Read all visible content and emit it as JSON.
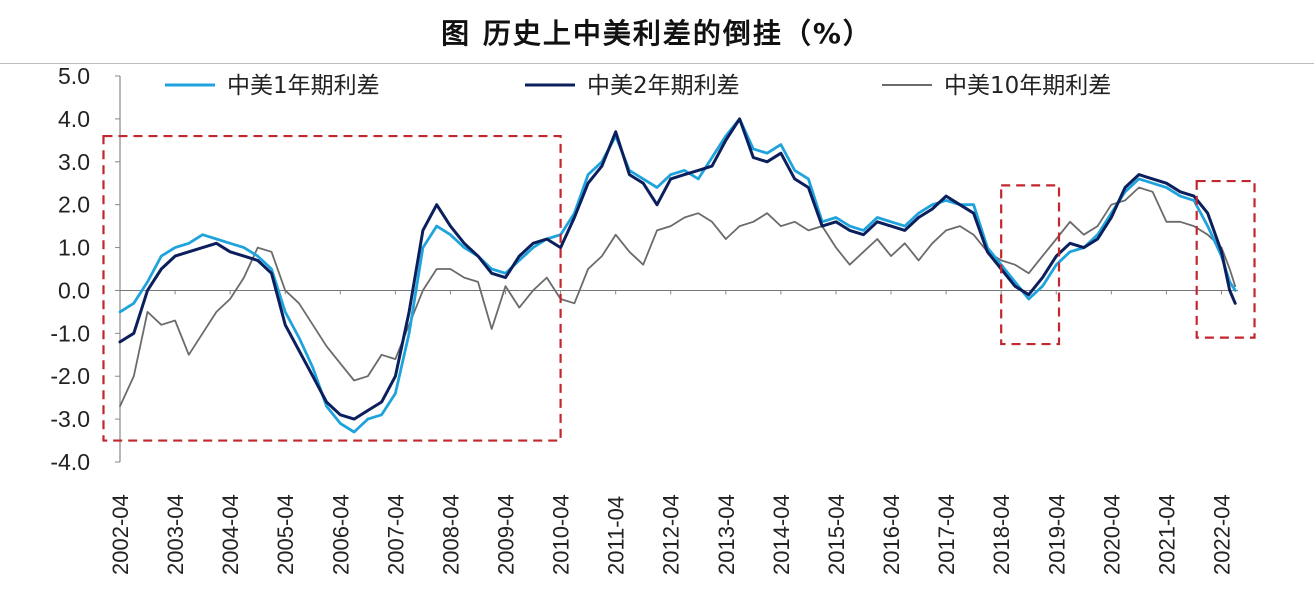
{
  "chart_data": {
    "type": "line",
    "title": "图 历史上中美利差的倒挂（%）",
    "xlabel": "",
    "ylabel": "",
    "ylim": [
      -4.0,
      5.0
    ],
    "y_ticks": [
      "5.0",
      "4.0",
      "3.0",
      "2.0",
      "1.0",
      "0.0",
      "-1.0",
      "-2.0",
      "-3.0",
      "-4.0"
    ],
    "y_tick_values": [
      5,
      4,
      3,
      2,
      1,
      0,
      -1,
      -2,
      -3,
      -4
    ],
    "x_range": [
      2002.25,
      2022.55
    ],
    "categories": [
      "2002-04",
      "2003-04",
      "2004-04",
      "2005-04",
      "2006-04",
      "2007-04",
      "2008-04",
      "2009-04",
      "2010-04",
      "2011-04",
      "2012-04",
      "2013-04",
      "2014-04",
      "2015-04",
      "2016-04",
      "2017-04",
      "2018-04",
      "2019-04",
      "2020-04",
      "2021-04",
      "2022-04"
    ],
    "category_positions": [
      2002.25,
      2003.25,
      2004.25,
      2005.25,
      2006.25,
      2007.25,
      2008.25,
      2009.25,
      2010.25,
      2011.25,
      2012.25,
      2013.25,
      2014.25,
      2015.25,
      2016.25,
      2017.25,
      2018.25,
      2019.25,
      2020.25,
      2021.25,
      2022.25
    ],
    "series": [
      {
        "name": "中美1年期利差",
        "color": "#1fa3dc",
        "x": [
          2002.25,
          2002.5,
          2002.75,
          2003.0,
          2003.25,
          2003.5,
          2003.75,
          2004.0,
          2004.25,
          2004.5,
          2004.75,
          2005.0,
          2005.25,
          2005.5,
          2005.75,
          2006.0,
          2006.25,
          2006.5,
          2006.75,
          2007.0,
          2007.25,
          2007.5,
          2007.75,
          2008.0,
          2008.25,
          2008.5,
          2008.75,
          2009.0,
          2009.25,
          2009.5,
          2009.75,
          2010.0,
          2010.25,
          2010.5,
          2010.75,
          2011.0,
          2011.25,
          2011.5,
          2011.75,
          2012.0,
          2012.25,
          2012.5,
          2012.75,
          2013.0,
          2013.25,
          2013.5,
          2013.75,
          2014.0,
          2014.25,
          2014.5,
          2014.75,
          2015.0,
          2015.25,
          2015.5,
          2015.75,
          2016.0,
          2016.25,
          2016.5,
          2016.75,
          2017.0,
          2017.25,
          2017.5,
          2017.75,
          2018.0,
          2018.25,
          2018.5,
          2018.75,
          2019.0,
          2019.25,
          2019.5,
          2019.75,
          2020.0,
          2020.25,
          2020.5,
          2020.75,
          2021.0,
          2021.25,
          2021.5,
          2021.75,
          2022.0,
          2022.25,
          2022.4,
          2022.5
        ],
        "values": [
          -0.5,
          -0.3,
          0.2,
          0.8,
          1.0,
          1.1,
          1.3,
          1.2,
          1.1,
          1.0,
          0.8,
          0.5,
          -0.5,
          -1.1,
          -1.8,
          -2.7,
          -3.1,
          -3.3,
          -3.0,
          -2.9,
          -2.4,
          -1.0,
          1.0,
          1.5,
          1.3,
          1.0,
          0.8,
          0.5,
          0.4,
          0.7,
          1.0,
          1.2,
          1.3,
          1.8,
          2.7,
          3.0,
          3.6,
          2.8,
          2.6,
          2.4,
          2.7,
          2.8,
          2.6,
          3.1,
          3.6,
          4.0,
          3.3,
          3.2,
          3.4,
          2.8,
          2.6,
          1.6,
          1.7,
          1.5,
          1.4,
          1.7,
          1.6,
          1.5,
          1.8,
          2.0,
          2.1,
          2.0,
          2.0,
          1.0,
          0.6,
          0.2,
          -0.2,
          0.1,
          0.6,
          0.9,
          1.0,
          1.3,
          1.8,
          2.3,
          2.6,
          2.5,
          2.4,
          2.2,
          2.1,
          1.5,
          0.8,
          0.2,
          0.0
        ]
      },
      {
        "name": "中美2年期利差",
        "color": "#0b1f5c",
        "x": [
          2002.25,
          2002.5,
          2002.75,
          2003.0,
          2003.25,
          2003.5,
          2003.75,
          2004.0,
          2004.25,
          2004.5,
          2004.75,
          2005.0,
          2005.25,
          2005.5,
          2005.75,
          2006.0,
          2006.25,
          2006.5,
          2006.75,
          2007.0,
          2007.25,
          2007.5,
          2007.75,
          2008.0,
          2008.25,
          2008.5,
          2008.75,
          2009.0,
          2009.25,
          2009.5,
          2009.75,
          2010.0,
          2010.25,
          2010.5,
          2010.75,
          2011.0,
          2011.25,
          2011.5,
          2011.75,
          2012.0,
          2012.25,
          2012.5,
          2012.75,
          2013.0,
          2013.25,
          2013.5,
          2013.75,
          2014.0,
          2014.25,
          2014.5,
          2014.75,
          2015.0,
          2015.25,
          2015.5,
          2015.75,
          2016.0,
          2016.25,
          2016.5,
          2016.75,
          2017.0,
          2017.25,
          2017.5,
          2017.75,
          2018.0,
          2018.25,
          2018.5,
          2018.75,
          2019.0,
          2019.25,
          2019.5,
          2019.75,
          2020.0,
          2020.25,
          2020.5,
          2020.75,
          2021.0,
          2021.25,
          2021.5,
          2021.75,
          2022.0,
          2022.25,
          2022.4,
          2022.5
        ],
        "values": [
          -1.2,
          -1.0,
          0.0,
          0.5,
          0.8,
          0.9,
          1.0,
          1.1,
          0.9,
          0.8,
          0.7,
          0.4,
          -0.8,
          -1.4,
          -2.0,
          -2.6,
          -2.9,
          -3.0,
          -2.8,
          -2.6,
          -2.0,
          -0.5,
          1.4,
          2.0,
          1.5,
          1.1,
          0.8,
          0.4,
          0.3,
          0.8,
          1.1,
          1.2,
          1.0,
          1.7,
          2.5,
          2.9,
          3.7,
          2.7,
          2.5,
          2.0,
          2.6,
          2.7,
          2.8,
          2.9,
          3.5,
          4.0,
          3.1,
          3.0,
          3.2,
          2.6,
          2.4,
          1.5,
          1.6,
          1.4,
          1.3,
          1.6,
          1.5,
          1.4,
          1.7,
          1.9,
          2.2,
          2.0,
          1.8,
          0.9,
          0.5,
          0.1,
          -0.1,
          0.3,
          0.8,
          1.1,
          1.0,
          1.2,
          1.7,
          2.4,
          2.7,
          2.6,
          2.5,
          2.3,
          2.2,
          1.8,
          0.9,
          0.0,
          -0.3
        ]
      },
      {
        "name": "中美10年期利差",
        "color": "#6b6b6b",
        "x": [
          2002.25,
          2002.5,
          2002.75,
          2003.0,
          2003.25,
          2003.5,
          2003.75,
          2004.0,
          2004.25,
          2004.5,
          2004.75,
          2005.0,
          2005.25,
          2005.5,
          2005.75,
          2006.0,
          2006.25,
          2006.5,
          2006.75,
          2007.0,
          2007.25,
          2007.5,
          2007.75,
          2008.0,
          2008.25,
          2008.5,
          2008.75,
          2009.0,
          2009.25,
          2009.5,
          2009.75,
          2010.0,
          2010.25,
          2010.5,
          2010.75,
          2011.0,
          2011.25,
          2011.5,
          2011.75,
          2012.0,
          2012.25,
          2012.5,
          2012.75,
          2013.0,
          2013.25,
          2013.5,
          2013.75,
          2014.0,
          2014.25,
          2014.5,
          2014.75,
          2015.0,
          2015.25,
          2015.5,
          2015.75,
          2016.0,
          2016.25,
          2016.5,
          2016.75,
          2017.0,
          2017.25,
          2017.5,
          2017.75,
          2018.0,
          2018.25,
          2018.5,
          2018.75,
          2019.0,
          2019.25,
          2019.5,
          2019.75,
          2020.0,
          2020.25,
          2020.5,
          2020.75,
          2021.0,
          2021.25,
          2021.5,
          2021.75,
          2022.0,
          2022.25,
          2022.4,
          2022.5
        ],
        "values": [
          -2.7,
          -2.0,
          -0.5,
          -0.8,
          -0.7,
          -1.5,
          -1.0,
          -0.5,
          -0.2,
          0.3,
          1.0,
          0.9,
          0.0,
          -0.3,
          -0.8,
          -1.3,
          -1.7,
          -2.1,
          -2.0,
          -1.5,
          -1.6,
          -0.8,
          0.0,
          0.5,
          0.5,
          0.3,
          0.2,
          -0.9,
          0.1,
          -0.4,
          0.0,
          0.3,
          -0.2,
          -0.3,
          0.5,
          0.8,
          1.3,
          0.9,
          0.6,
          1.4,
          1.5,
          1.7,
          1.8,
          1.6,
          1.2,
          1.5,
          1.6,
          1.8,
          1.5,
          1.6,
          1.4,
          1.5,
          1.0,
          0.6,
          0.9,
          1.2,
          0.8,
          1.1,
          0.7,
          1.1,
          1.4,
          1.5,
          1.3,
          0.9,
          0.7,
          0.6,
          0.4,
          0.8,
          1.2,
          1.6,
          1.3,
          1.5,
          2.0,
          2.1,
          2.4,
          2.3,
          1.6,
          1.6,
          1.5,
          1.3,
          1.0,
          0.5,
          0.1
        ]
      }
    ],
    "annotations": [
      {
        "type": "dashed-box",
        "color": "#c1272d",
        "x_range": [
          2001.95,
          2010.25
        ],
        "y_range": [
          -3.5,
          3.6
        ]
      },
      {
        "type": "dashed-box",
        "color": "#c1272d",
        "x_range": [
          2018.25,
          2019.3
        ],
        "y_range": [
          -1.25,
          2.45
        ]
      },
      {
        "type": "dashed-box",
        "color": "#c1272d",
        "x_range": [
          2021.8,
          2022.85
        ],
        "y_range": [
          -1.1,
          2.55
        ]
      }
    ],
    "legend": [
      {
        "label": "中美1年期利差",
        "color": "#1fa3dc"
      },
      {
        "label": "中美2年期利差",
        "color": "#0b1f5c"
      },
      {
        "label": "中美10年期利差",
        "color": "#6b6b6b"
      }
    ]
  }
}
